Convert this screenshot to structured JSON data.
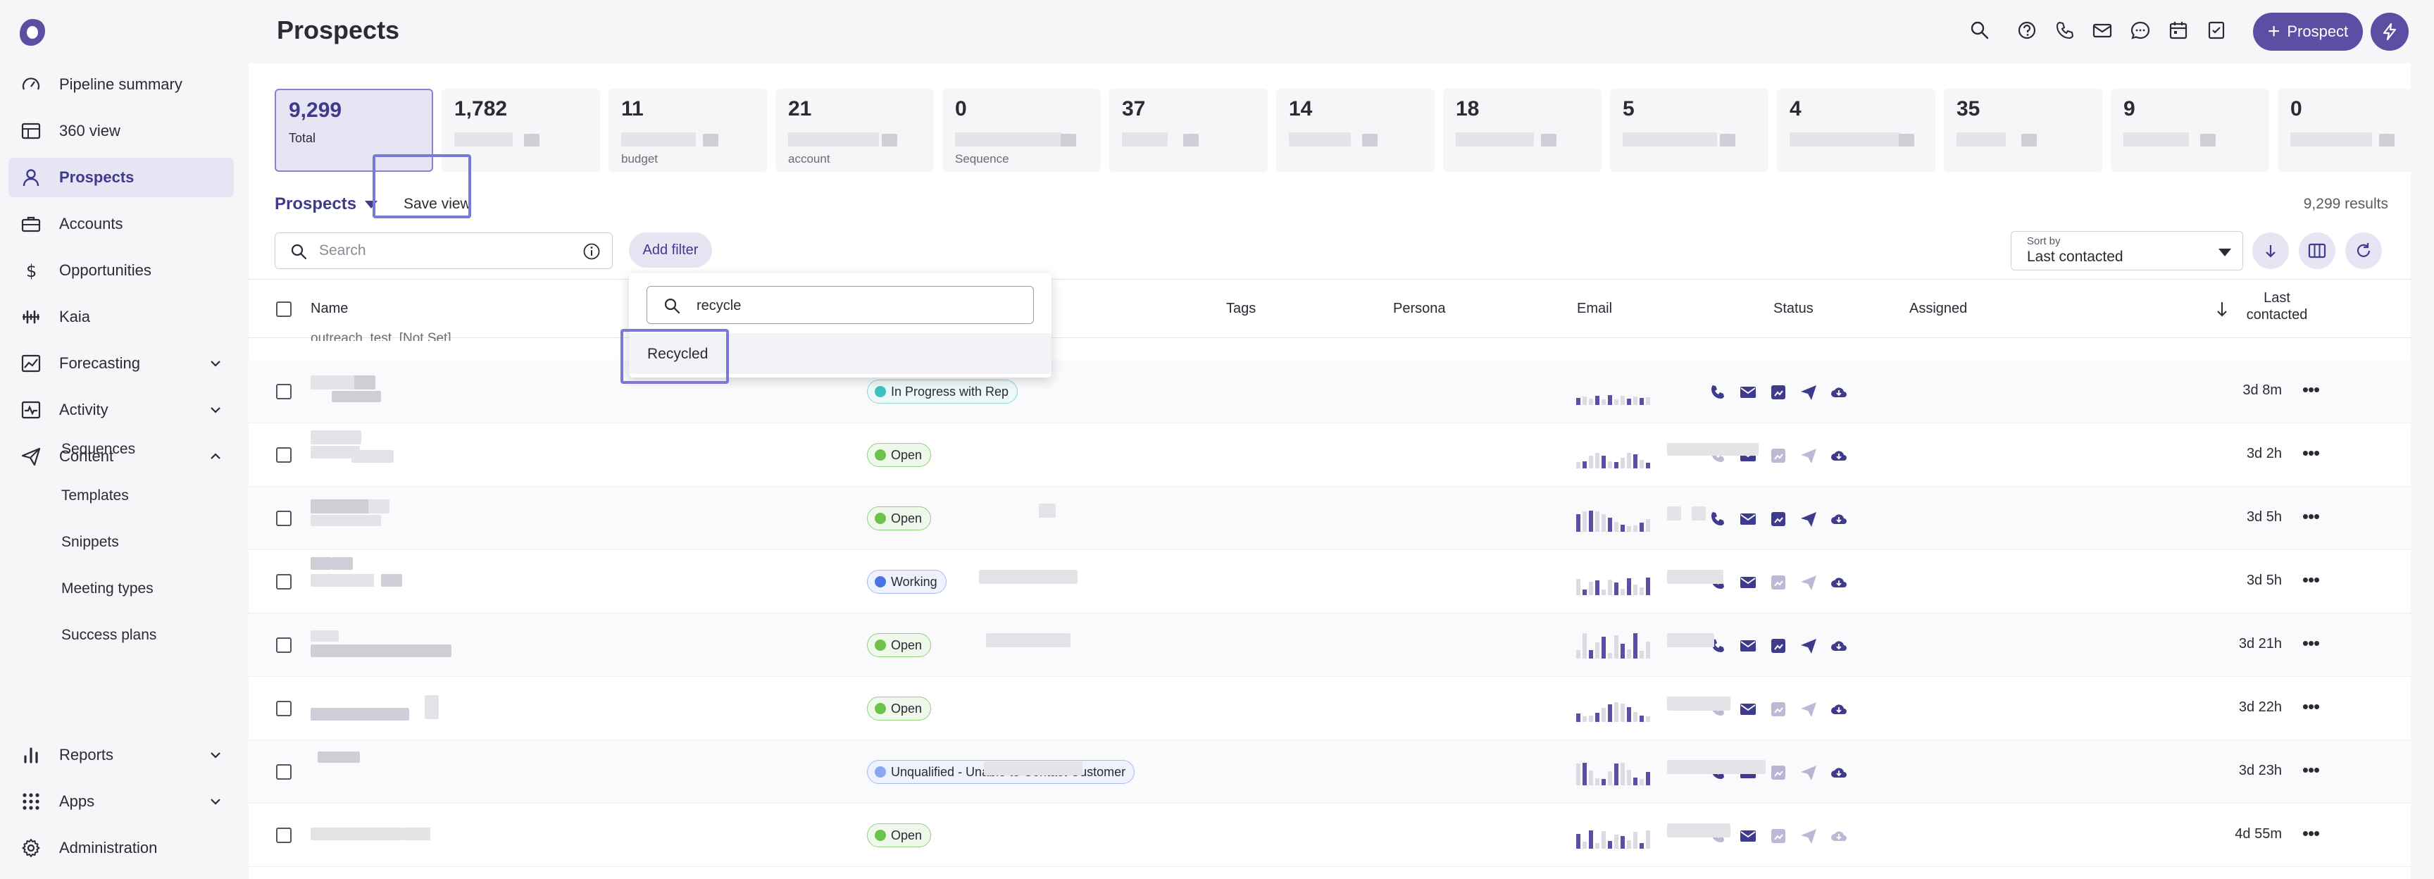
{
  "app": {
    "page_title": "Prospects"
  },
  "sidebar": {
    "items": [
      {
        "label": "Pipeline summary",
        "icon": "pipeline-gauge-icon"
      },
      {
        "label": "360 view",
        "icon": "grid-table-icon"
      },
      {
        "label": "Prospects",
        "icon": "person-icon",
        "active": true
      },
      {
        "label": "Accounts",
        "icon": "briefcase-icon"
      },
      {
        "label": "Opportunities",
        "icon": "dollar-icon"
      },
      {
        "label": "Kaia",
        "icon": "waveform-icon"
      },
      {
        "label": "Forecasting",
        "icon": "trend-chart-icon"
      },
      {
        "label": "Activity",
        "icon": "activity-pulse-icon"
      },
      {
        "label": "Content",
        "icon": "paper-plane-icon"
      }
    ],
    "content_subitems": [
      "Sequences",
      "Templates",
      "Snippets",
      "Meeting types",
      "Success plans"
    ],
    "bottom_items": [
      {
        "label": "Reports",
        "icon": "bar-chart-icon"
      },
      {
        "label": "Apps",
        "icon": "apps-grid-icon"
      },
      {
        "label": "Administration",
        "icon": "gear-icon"
      }
    ]
  },
  "header": {
    "prospect_button": "Prospect",
    "icons": [
      "search-icon",
      "help-icon",
      "phone-icon",
      "mail-icon",
      "chat-icon",
      "calendar-icon",
      "tasks-icon"
    ]
  },
  "stats": [
    {
      "value": "9,299",
      "label": "Total",
      "active": true
    },
    {
      "value": "1,782",
      "label": ""
    },
    {
      "value": "11",
      "label": "budget"
    },
    {
      "value": "21",
      "label": "account"
    },
    {
      "value": "0",
      "label": "Sequence"
    },
    {
      "value": "37",
      "label": ""
    },
    {
      "value": "14",
      "label": ""
    },
    {
      "value": "18",
      "label": ""
    },
    {
      "value": "5",
      "label": ""
    },
    {
      "value": "4",
      "label": ""
    },
    {
      "value": "35",
      "label": ""
    },
    {
      "value": "9",
      "label": ""
    },
    {
      "value": "0",
      "label": ""
    }
  ],
  "toolbar": {
    "view_name": "Prospects",
    "save_view": "Save view",
    "results": "9,299 results",
    "search_placeholder": "Search",
    "add_filter": "Add filter",
    "sort_label": "Sort by",
    "sort_value": "Last contacted"
  },
  "filter_dropdown": {
    "search_value": "recycle",
    "options": [
      "Recycled"
    ]
  },
  "table": {
    "columns": {
      "name": "Name",
      "tags": "Tags",
      "persona": "Persona",
      "email": "Email",
      "status": "Status",
      "assigned": "Assigned",
      "last_contacted": "Last contacted"
    },
    "partial_row_text": "outreach_test, [Not Set]",
    "rows": [
      {
        "status": "In Progress with Rep",
        "status_color": "#3cc0c0",
        "last_contacted": "3d 8m"
      },
      {
        "status": "Open",
        "status_color": "#6cc24a",
        "last_contacted": "3d 2h"
      },
      {
        "status": "Open",
        "status_color": "#6cc24a",
        "last_contacted": "3d 5h"
      },
      {
        "status": "Working",
        "status_color": "#4a73e8",
        "last_contacted": "3d 5h"
      },
      {
        "status": "Open",
        "status_color": "#6cc24a",
        "last_contacted": "3d 21h"
      },
      {
        "status": "Open",
        "status_color": "#6cc24a",
        "last_contacted": "3d 22h"
      },
      {
        "status": "Unqualified - Unable to Contact Customer",
        "status_color": "#8aa6f0",
        "last_contacted": "3d 23h"
      },
      {
        "status": "Open",
        "status_color": "#6cc24a",
        "last_contacted": "4d 55m"
      }
    ]
  },
  "colors": {
    "accent": "#5a4fa3",
    "accent_light": "#e7e4f4",
    "highlight": "#7b79d8"
  }
}
